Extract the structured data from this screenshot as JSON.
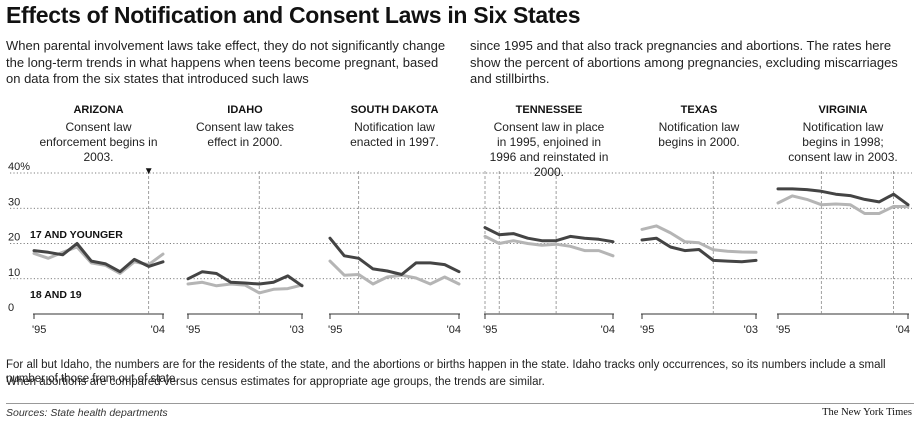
{
  "title": "Effects of Notification and Consent Laws in Six States",
  "intro_left": "When parental involvement laws take effect, they do not significantly change the long-term trends in what happens when teens become pregnant, based on data from the six states that introduced such laws",
  "intro_right": "since 1995 and that also track pregnancies and abortions. The rates here show the percent of abortions among pregnancies, excluding miscarriages and stillbirths.",
  "footnote1": "For all but Idaho, the numbers are for the residents of the state, and the abortions or births happen in the state. Idaho tracks only occurrences, so its numbers include a small number of those from out of state.",
  "footnote2": "When abortions are compared versus census estimates for appropriate age groups, the trends are similar.",
  "source": "Sources: State health departments",
  "credit": "The New York Times",
  "colors": {
    "series_17_and_younger": "#444444",
    "series_18_and_19": "#b5b5b5",
    "gridline": "#555555",
    "law_marker": "#888888"
  },
  "chart_data": {
    "type": "line",
    "ylim": [
      0,
      40
    ],
    "yticks": [
      "0",
      "10",
      "20",
      "30",
      "40%"
    ],
    "grid": true,
    "series_labels": [
      "17 AND YOUNGER",
      "18 AND 19"
    ],
    "marker_symbol": "▼",
    "panels": [
      {
        "state": "ARIZONA",
        "note": "Consent law enforcement begins in 2003.",
        "x_start": 1995,
        "x_end": 2004,
        "x_labels": [
          "'95",
          "'04"
        ],
        "law_years": [
          2003
        ],
        "marker": true,
        "series": [
          {
            "name": "17 AND YOUNGER",
            "values": [
              18,
              17.5,
              16.8,
              20,
              15,
              14.2,
              12,
              15.5,
              13.5,
              14.8
            ]
          },
          {
            "name": "18 AND 19",
            "values": [
              17.2,
              15.8,
              17.5,
              19,
              14.5,
              13.8,
              11.5,
              14.8,
              14,
              17
            ]
          }
        ]
      },
      {
        "state": "IDAHO",
        "note": "Consent law takes effect in 2000.",
        "x_start": 1995,
        "x_end": 2003,
        "x_labels": [
          "'95",
          "'03"
        ],
        "law_years": [
          2000
        ],
        "marker": false,
        "series": [
          {
            "name": "17 AND YOUNGER",
            "values": [
              10,
              12,
              11.5,
              9,
              8.8,
              8.5,
              9,
              10.8,
              8
            ]
          },
          {
            "name": "18 AND 19",
            "values": [
              8.5,
              9,
              8,
              8.5,
              8.2,
              6,
              7,
              7.2,
              8.2
            ]
          }
        ]
      },
      {
        "state": "SOUTH DAKOTA",
        "note": "Notification law enacted in 1997.",
        "x_start": 1995,
        "x_end": 2004,
        "x_labels": [
          "'95",
          "'04"
        ],
        "law_years": [
          1997
        ],
        "marker": false,
        "series": [
          {
            "name": "17 AND YOUNGER",
            "values": [
              21.5,
              16.5,
              15.8,
              12.8,
              12.2,
              11.2,
              14.5,
              14.5,
              14,
              12
            ]
          },
          {
            "name": "18 AND 19",
            "values": [
              15,
              11,
              11.2,
              8.5,
              10.5,
              11,
              10.2,
              8.5,
              10.5,
              8.5
            ]
          }
        ]
      },
      {
        "state": "TENNESSEE",
        "note": "Consent law in place in 1995, enjoined in 1996 and reinstated in 2000.",
        "x_start": 1995,
        "x_end": 2004,
        "x_labels": [
          "'95",
          "'04"
        ],
        "law_years": [
          1995,
          1996,
          2000
        ],
        "marker": false,
        "series": [
          {
            "name": "17 AND YOUNGER",
            "values": [
              24.5,
              22.5,
              22.8,
              21.5,
              20.8,
              20.8,
              22,
              21.5,
              21.2,
              20.5
            ]
          },
          {
            "name": "18 AND 19",
            "values": [
              22,
              20,
              20.8,
              20,
              19.5,
              19.8,
              19.2,
              18,
              18,
              16.5
            ]
          }
        ]
      },
      {
        "state": "TEXAS",
        "note": "Notification law begins in 2000.",
        "x_start": 1995,
        "x_end": 2003,
        "x_labels": [
          "'95",
          "'03"
        ],
        "law_years": [
          2000
        ],
        "marker": false,
        "series": [
          {
            "name": "17 AND YOUNGER",
            "values": [
              21,
              21.5,
              19,
              18,
              18.3,
              15.2,
              15,
              14.8,
              15.2
            ]
          },
          {
            "name": "18 AND 19",
            "values": [
              24,
              25,
              23,
              20.5,
              20.2,
              18.2,
              17.8,
              17.6,
              17.5
            ]
          }
        ]
      },
      {
        "state": "VIRGINIA",
        "note": "Notification law begins in 1998; consent law in 2003.",
        "x_start": 1995,
        "x_end": 2004,
        "x_labels": [
          "'95",
          "'04"
        ],
        "law_years": [
          1998,
          2003
        ],
        "marker": false,
        "series": [
          {
            "name": "17 AND YOUNGER",
            "values": [
              35.5,
              35.5,
              35.3,
              34.8,
              34,
              33.6,
              32.5,
              31.8,
              34,
              31
            ]
          },
          {
            "name": "18 AND 19",
            "values": [
              31.5,
              33.5,
              32.5,
              31,
              31.2,
              31,
              28.5,
              28.5,
              30.5,
              30.5
            ]
          }
        ]
      }
    ]
  }
}
